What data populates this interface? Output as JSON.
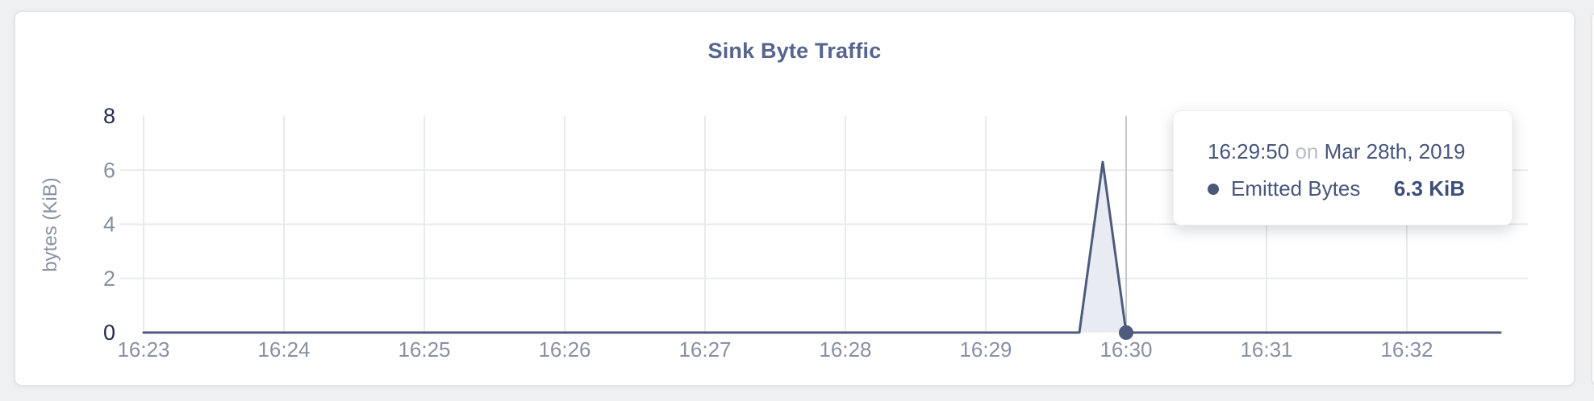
{
  "chart_data": {
    "type": "area",
    "title": "Sink Byte Traffic",
    "ylabel": "bytes (KiB)",
    "x_tick_labels": [
      "16:23",
      "16:24",
      "16:25",
      "16:26",
      "16:27",
      "16:28",
      "16:29",
      "16:30",
      "16:31",
      "16:32"
    ],
    "y_ticks": [
      0,
      2,
      4,
      6,
      8
    ],
    "ylim": [
      0,
      8
    ],
    "x_start": "16:23:00",
    "x_end": "16:32:40",
    "grid": true,
    "legend": "none",
    "series": [
      {
        "name": "Emitted Bytes",
        "points": [
          [
            "16:23:00",
            0
          ],
          [
            "16:29:40",
            0
          ],
          [
            "16:29:50",
            6.3
          ],
          [
            "16:30:00",
            0
          ],
          [
            "16:32:40",
            0
          ]
        ]
      }
    ],
    "hover": {
      "crosshair_time": "16:30:00",
      "marker_value": 0
    }
  },
  "tooltip": {
    "time": "16:29:50",
    "separator": "on",
    "date": "Mar 28th, 2019",
    "series": "Emitted Bytes",
    "value": "6.3 KiB"
  },
  "colors": {
    "accent": "#4e5b7e",
    "area_fill": "#e9ebf2",
    "grid": "#e9eaec",
    "crosshair": "#c6c8cc",
    "tick_major": "#222e4d",
    "tick_minor": "#8a90a3",
    "title": "#56648f",
    "tooltip_text": "#47567c",
    "tooltip_muted": "#b9bdc6",
    "tooltip_value": "#3e4e78",
    "card_bg": "#ffffff",
    "page_bg": "#eff0f2"
  }
}
